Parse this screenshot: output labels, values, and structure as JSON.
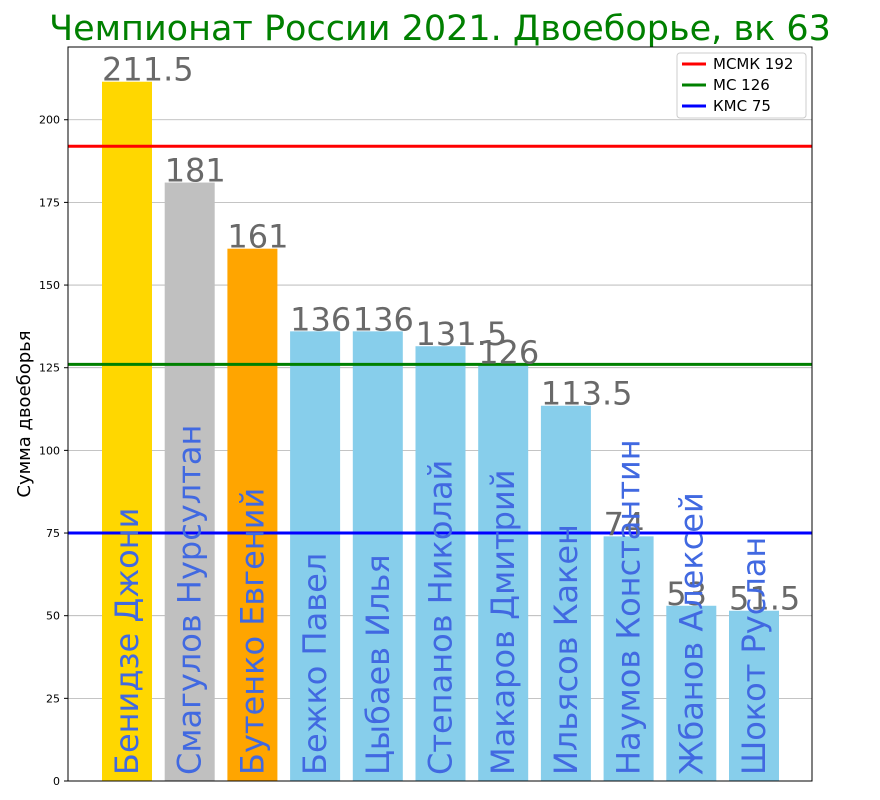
{
  "chart_data": {
    "type": "bar",
    "title": "Чемпионат России 2021. Двоеборье, вк 63",
    "xlabel": "",
    "ylabel": "Сумма двоеборья",
    "ylim": [
      0,
      222
    ],
    "yticks": [
      0,
      25,
      50,
      75,
      100,
      125,
      150,
      175,
      200
    ],
    "grid": "horizontal",
    "legend_placement": "top-right",
    "categories": [
      "Бенидзе Джони",
      "Смагулов Нурсултан",
      "Бутенко Евгений",
      "Бежко Павел",
      "Цыбаев Илья",
      "Степанов Николай",
      "Макаров Дмитрий",
      "Ильясов Какен",
      "Наумов Константин",
      "Жбанов Алексей",
      "Шокот Руслан"
    ],
    "values": [
      211.5,
      181,
      161,
      136,
      136,
      131.5,
      126,
      113.5,
      74,
      53,
      51.5
    ],
    "value_labels": [
      "211.5",
      "181",
      "161",
      "136",
      "136",
      "131.5",
      "126",
      "113.5",
      "74",
      "53",
      "51.5"
    ],
    "bar_colors": [
      "#ffd700",
      "#c0c0c0",
      "#ffa500",
      "#87ceeb",
      "#87ceeb",
      "#87ceeb",
      "#87ceeb",
      "#87ceeb",
      "#87ceeb",
      "#87ceeb",
      "#87ceeb"
    ],
    "reference_lines": [
      {
        "label": "МСМК 192",
        "value": 192,
        "color": "#ff0000"
      },
      {
        "label": "МС 126",
        "value": 126,
        "color": "#008000"
      },
      {
        "label": "КМС 75",
        "value": 75,
        "color": "#0000ff"
      }
    ],
    "colors": {
      "title": "#008000",
      "value_label": "#696969",
      "name_label": "#4169e1"
    }
  }
}
